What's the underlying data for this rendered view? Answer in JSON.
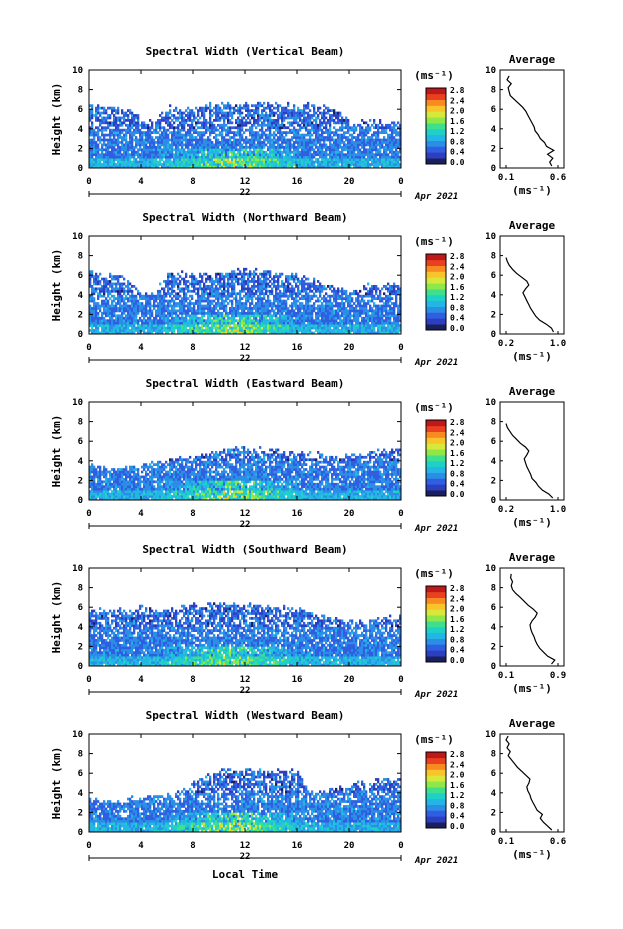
{
  "figure": {
    "x_label": "Local Time",
    "date_label": "Apr 2021",
    "day": "22",
    "units_label": "(ms⁻¹)",
    "average_title": "Average",
    "average_xlabel": "(ms⁻¹)",
    "height_label": "Height (km)"
  },
  "chart_data": [
    {
      "type": "heatmap",
      "title": "Spectral Width (Vertical Beam)",
      "xlabel": "Local Time",
      "ylabel": "Height (km)",
      "x_ticks": [
        "0",
        "4",
        "8",
        "12",
        "16",
        "20",
        "0"
      ],
      "xlim": [
        0,
        24
      ],
      "y_ticks": [
        "0",
        "2",
        "4",
        "6",
        "8",
        "10"
      ],
      "ylim": [
        0,
        10
      ],
      "colorbar": {
        "ticks": [
          "0.0",
          "0.4",
          "0.8",
          "1.2",
          "1.6",
          "2.0",
          "2.4",
          "2.8"
        ],
        "range": [
          0,
          2.8
        ]
      },
      "echo_top_km_by_hour": [
        6.3,
        6.2,
        6.1,
        6.0,
        5.0,
        4.5,
        6.2,
        6.0,
        6.1,
        6.4,
        6.5,
        6.5,
        6.6,
        6.6,
        6.5,
        6.4,
        6.4,
        6.5,
        6.4,
        5.9,
        4.5,
        4.6,
        4.8,
        4.6
      ],
      "average_profile": {
        "xlim": [
          0.1,
          0.6
        ],
        "x_ticks": [
          "0.1",
          "0.6"
        ],
        "ylim": [
          0,
          10
        ],
        "y_ticks": [
          "0",
          "2",
          "4",
          "6",
          "8",
          "10"
        ],
        "height_km": [
          0.2,
          0.6,
          1.0,
          1.4,
          1.8,
          2.2,
          2.6,
          3.0,
          3.4,
          3.8,
          4.2,
          4.6,
          5.0,
          5.4,
          5.8,
          6.2,
          6.6,
          7.0,
          7.4,
          7.8,
          8.2,
          8.6,
          9.0,
          9.4
        ],
        "width_ms": [
          0.54,
          0.52,
          0.55,
          0.5,
          0.56,
          0.49,
          0.47,
          0.43,
          0.41,
          0.38,
          0.37,
          0.35,
          0.33,
          0.31,
          0.29,
          0.26,
          0.22,
          0.18,
          0.14,
          0.13,
          0.12,
          0.15,
          0.11,
          0.13
        ]
      }
    },
    {
      "type": "heatmap",
      "title": "Spectral Width (Northward Beam)",
      "xlabel": "Local Time",
      "ylabel": "Height (km)",
      "x_ticks": [
        "0",
        "4",
        "8",
        "12",
        "16",
        "20",
        "0"
      ],
      "xlim": [
        0,
        24
      ],
      "y_ticks": [
        "0",
        "2",
        "4",
        "6",
        "8",
        "10"
      ],
      "ylim": [
        0,
        10
      ],
      "colorbar": {
        "ticks": [
          "0.0",
          "0.4",
          "0.8",
          "1.2",
          "1.6",
          "2.0",
          "2.4",
          "2.8"
        ],
        "range": [
          0,
          2.8
        ]
      },
      "echo_top_km_by_hour": [
        6.2,
        6.1,
        6.0,
        5.5,
        4.2,
        4.0,
        6.2,
        6.3,
        6.0,
        6.0,
        6.2,
        6.4,
        6.5,
        6.5,
        6.3,
        6.2,
        6.0,
        5.6,
        5.2,
        4.8,
        4.5,
        4.8,
        5.0,
        5.1
      ],
      "average_profile": {
        "xlim": [
          0.2,
          1.0
        ],
        "x_ticks": [
          "0.2",
          "1.0"
        ],
        "ylim": [
          0,
          10
        ],
        "y_ticks": [
          "0",
          "2",
          "4",
          "6",
          "8",
          "10"
        ],
        "height_km": [
          0.2,
          0.6,
          1.0,
          1.4,
          1.8,
          2.2,
          2.6,
          3.0,
          3.4,
          3.8,
          4.2,
          4.6,
          5.0,
          5.4,
          5.8,
          6.2,
          6.6,
          7.0,
          7.4,
          7.8
        ],
        "width_ms": [
          0.93,
          0.9,
          0.82,
          0.72,
          0.66,
          0.62,
          0.58,
          0.55,
          0.52,
          0.49,
          0.46,
          0.5,
          0.55,
          0.52,
          0.44,
          0.36,
          0.3,
          0.25,
          0.22,
          0.2
        ]
      }
    },
    {
      "type": "heatmap",
      "title": "Spectral Width (Eastward Beam)",
      "xlabel": "Local Time",
      "ylabel": "Height (km)",
      "x_ticks": [
        "0",
        "4",
        "8",
        "12",
        "16",
        "20",
        "0"
      ],
      "xlim": [
        0,
        24
      ],
      "y_ticks": [
        "0",
        "2",
        "4",
        "6",
        "8",
        "10"
      ],
      "ylim": [
        0,
        10
      ],
      "colorbar": {
        "ticks": [
          "0.0",
          "0.4",
          "0.8",
          "1.2",
          "1.6",
          "2.0",
          "2.4",
          "2.8"
        ],
        "range": [
          0,
          2.8
        ]
      },
      "echo_top_km_by_hour": [
        3.4,
        3.4,
        3.2,
        3.5,
        3.6,
        3.8,
        4.0,
        4.3,
        4.5,
        4.7,
        5.0,
        5.2,
        5.3,
        5.2,
        5.0,
        4.9,
        4.8,
        4.6,
        4.6,
        4.5,
        4.6,
        4.8,
        5.0,
        5.0
      ],
      "average_profile": {
        "xlim": [
          0.2,
          1.0
        ],
        "x_ticks": [
          "0.2",
          "1.0"
        ],
        "ylim": [
          0,
          10
        ],
        "y_ticks": [
          "0",
          "2",
          "4",
          "6",
          "8",
          "10"
        ],
        "height_km": [
          0.2,
          0.6,
          1.0,
          1.4,
          1.8,
          2.2,
          2.6,
          3.0,
          3.4,
          3.8,
          4.2,
          4.6,
          5.0,
          5.4,
          5.8,
          6.2,
          6.6,
          7.0,
          7.4,
          7.8
        ],
        "width_ms": [
          0.92,
          0.86,
          0.76,
          0.7,
          0.66,
          0.6,
          0.58,
          0.55,
          0.52,
          0.5,
          0.48,
          0.52,
          0.55,
          0.5,
          0.42,
          0.36,
          0.3,
          0.26,
          0.22,
          0.2
        ]
      }
    },
    {
      "type": "heatmap",
      "title": "Spectral Width (Southward Beam)",
      "xlabel": "Local Time",
      "ylabel": "Height (km)",
      "x_ticks": [
        "0",
        "4",
        "8",
        "12",
        "16",
        "20",
        "0"
      ],
      "xlim": [
        0,
        24
      ],
      "y_ticks": [
        "0",
        "2",
        "4",
        "6",
        "8",
        "10"
      ],
      "ylim": [
        0,
        10
      ],
      "colorbar": {
        "ticks": [
          "0.0",
          "0.4",
          "0.8",
          "1.2",
          "1.6",
          "2.0",
          "2.4",
          "2.8"
        ],
        "range": [
          0,
          2.8
        ]
      },
      "echo_top_km_by_hour": [
        5.8,
        5.8,
        5.7,
        5.5,
        6.0,
        5.6,
        5.8,
        6.0,
        6.2,
        6.2,
        6.3,
        6.3,
        6.2,
        6.2,
        6.0,
        6.0,
        5.8,
        5.6,
        5.4,
        5.0,
        4.6,
        4.5,
        4.8,
        5.0
      ],
      "average_profile": {
        "xlim": [
          0.1,
          0.9
        ],
        "x_ticks": [
          "0.1",
          "0.9"
        ],
        "ylim": [
          0,
          10
        ],
        "y_ticks": [
          "0",
          "2",
          "4",
          "6",
          "8",
          "10"
        ],
        "height_km": [
          0.2,
          0.6,
          1.0,
          1.4,
          1.8,
          2.2,
          2.6,
          3.0,
          3.4,
          3.8,
          4.2,
          4.6,
          5.0,
          5.4,
          5.8,
          6.2,
          6.6,
          7.0,
          7.4,
          7.8,
          8.2,
          8.6,
          9.0,
          9.4
        ],
        "width_ms": [
          0.8,
          0.85,
          0.74,
          0.68,
          0.62,
          0.58,
          0.55,
          0.53,
          0.5,
          0.48,
          0.47,
          0.5,
          0.55,
          0.58,
          0.52,
          0.44,
          0.38,
          0.32,
          0.25,
          0.2,
          0.18,
          0.2,
          0.17,
          0.18
        ]
      }
    },
    {
      "type": "heatmap",
      "title": "Spectral Width (Westward Beam)",
      "xlabel": "Local Time",
      "ylabel": "Height (km)",
      "x_ticks": [
        "0",
        "4",
        "8",
        "12",
        "16",
        "20",
        "0"
      ],
      "xlim": [
        0,
        24
      ],
      "y_ticks": [
        "0",
        "2",
        "4",
        "6",
        "8",
        "10"
      ],
      "ylim": [
        0,
        10
      ],
      "colorbar": {
        "ticks": [
          "0.0",
          "0.4",
          "0.8",
          "1.2",
          "1.6",
          "2.0",
          "2.4",
          "2.8"
        ],
        "range": [
          0,
          2.8
        ]
      },
      "echo_top_km_by_hour": [
        3.2,
        3.2,
        3.3,
        3.3,
        3.5,
        3.6,
        3.8,
        4.2,
        5.0,
        5.8,
        6.2,
        6.3,
        6.3,
        6.2,
        6.3,
        6.2,
        6.2,
        4.0,
        4.2,
        4.4,
        4.6,
        5.0,
        5.2,
        5.3
      ],
      "average_profile": {
        "xlim": [
          0.1,
          0.6
        ],
        "x_ticks": [
          "0.1",
          "0.6"
        ],
        "ylim": [
          0,
          10
        ],
        "y_ticks": [
          "0",
          "2",
          "4",
          "6",
          "8",
          "10"
        ],
        "height_km": [
          0.2,
          0.6,
          1.0,
          1.4,
          1.8,
          2.2,
          2.6,
          3.0,
          3.4,
          3.8,
          4.2,
          4.6,
          5.0,
          5.4,
          5.8,
          6.2,
          6.6,
          7.0,
          7.4,
          7.8,
          8.2,
          8.6,
          9.0,
          9.4,
          9.8
        ],
        "width_ms": [
          0.54,
          0.5,
          0.46,
          0.43,
          0.45,
          0.4,
          0.38,
          0.36,
          0.34,
          0.33,
          0.31,
          0.3,
          0.32,
          0.33,
          0.29,
          0.25,
          0.21,
          0.18,
          0.15,
          0.12,
          0.14,
          0.11,
          0.13,
          0.1,
          0.12
        ]
      }
    }
  ]
}
